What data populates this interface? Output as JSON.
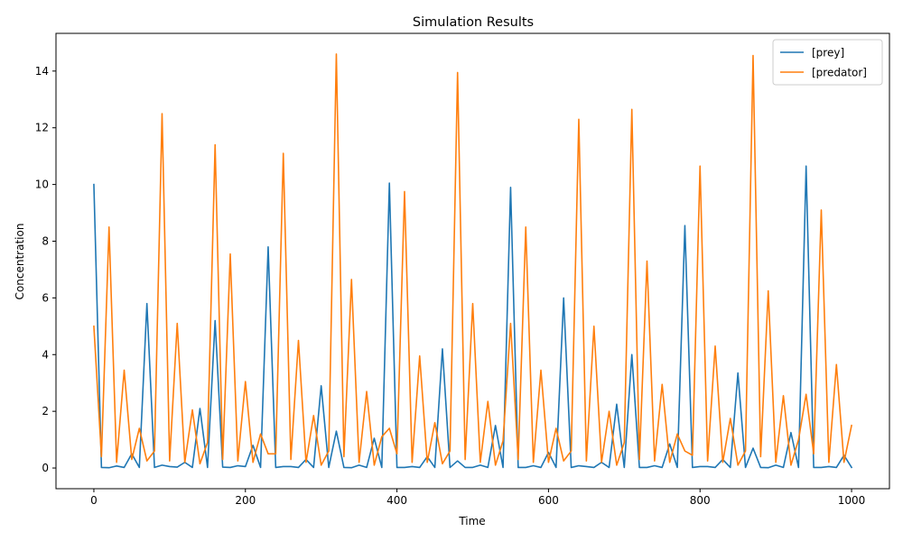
{
  "chart_data": {
    "type": "line",
    "title": "Simulation Results",
    "xlabel": "Time",
    "ylabel": "Concentration",
    "xlim": [
      -50,
      1050
    ],
    "ylim": [
      -0.73,
      15.33
    ],
    "xticks": [
      0,
      200,
      400,
      600,
      800,
      1000
    ],
    "yticks": [
      0,
      2,
      4,
      6,
      8,
      10,
      12,
      14
    ],
    "legend_position": "top-right",
    "grid": false,
    "x": [
      0,
      10,
      20,
      30,
      40,
      50,
      60,
      70,
      80,
      90,
      100,
      110,
      120,
      130,
      140,
      150,
      160,
      170,
      180,
      190,
      200,
      210,
      220,
      230,
      240,
      250,
      260,
      270,
      280,
      290,
      300,
      310,
      320,
      330,
      340,
      350,
      360,
      370,
      380,
      390,
      400,
      410,
      420,
      430,
      440,
      450,
      460,
      470,
      480,
      490,
      500,
      510,
      520,
      530,
      540,
      550,
      560,
      570,
      580,
      590,
      600,
      610,
      620,
      630,
      640,
      650,
      660,
      670,
      680,
      690,
      700,
      710,
      720,
      730,
      740,
      750,
      760,
      770,
      780,
      790,
      800,
      810,
      820,
      830,
      840,
      850,
      860,
      870,
      880,
      890,
      900,
      910,
      920,
      930,
      940,
      950,
      960,
      970,
      980,
      990,
      1000
    ],
    "series": [
      {
        "name": "[prey]",
        "color": "#1f77b4",
        "values": [
          10.0,
          0.02,
          0.01,
          0.07,
          0.02,
          0.5,
          0.02,
          5.8,
          0.02,
          0.1,
          0.05,
          0.03,
          0.2,
          0.02,
          2.1,
          0.02,
          5.2,
          0.03,
          0.02,
          0.08,
          0.05,
          0.8,
          0.02,
          7.8,
          0.02,
          0.05,
          0.05,
          0.02,
          0.3,
          0.02,
          2.9,
          0.02,
          1.3,
          0.02,
          0.01,
          0.1,
          0.02,
          1.05,
          0.02,
          10.05,
          0.02,
          0.02,
          0.05,
          0.02,
          0.4,
          0.02,
          4.2,
          0.02,
          0.25,
          0.02,
          0.02,
          0.1,
          0.02,
          1.5,
          0.02,
          9.9,
          0.02,
          0.02,
          0.08,
          0.02,
          0.55,
          0.02,
          6.0,
          0.02,
          0.08,
          0.05,
          0.02,
          0.2,
          0.02,
          2.25,
          0.02,
          4.0,
          0.02,
          0.02,
          0.08,
          0.02,
          0.85,
          0.02,
          8.55,
          0.02,
          0.05,
          0.05,
          0.02,
          0.3,
          0.02,
          3.35,
          0.02,
          0.7,
          0.02,
          0.01,
          0.1,
          0.02,
          1.25,
          0.02,
          10.65,
          0.02,
          0.02,
          0.05,
          0.02,
          0.45,
          0.02
        ]
      },
      {
        "name": "[predator]",
        "color": "#ff7f0e",
        "values": [
          5.0,
          0.4,
          8.5,
          0.2,
          3.45,
          0.3,
          1.4,
          0.25,
          0.6,
          12.5,
          0.25,
          5.1,
          0.2,
          2.05,
          0.15,
          0.9,
          11.4,
          0.3,
          7.55,
          0.25,
          3.05,
          0.2,
          1.2,
          0.5,
          0.5,
          11.1,
          0.3,
          4.5,
          0.2,
          1.85,
          0.1,
          0.6,
          14.6,
          0.4,
          6.65,
          0.2,
          2.7,
          0.1,
          1.1,
          1.4,
          0.5,
          9.75,
          0.2,
          3.95,
          0.2,
          1.6,
          0.15,
          0.6,
          13.95,
          0.3,
          5.8,
          0.2,
          2.35,
          0.1,
          0.95,
          5.1,
          0.3,
          8.5,
          0.2,
          3.45,
          0.2,
          1.4,
          0.25,
          0.6,
          12.3,
          0.25,
          5.0,
          0.2,
          2.0,
          0.1,
          0.9,
          12.65,
          0.3,
          7.3,
          0.25,
          2.95,
          0.2,
          1.2,
          0.6,
          0.45,
          10.65,
          0.25,
          4.3,
          0.2,
          1.75,
          0.1,
          0.6,
          14.55,
          0.4,
          6.25,
          0.2,
          2.55,
          0.1,
          1.0,
          2.6,
          0.5,
          9.1,
          0.2,
          3.65,
          0.2,
          1.5
        ]
      }
    ]
  }
}
